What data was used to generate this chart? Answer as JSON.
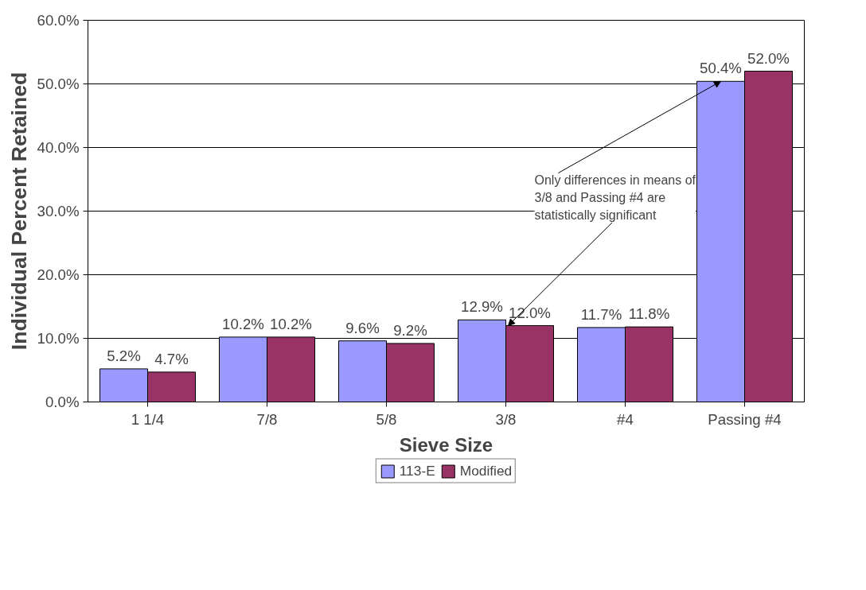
{
  "chart_data": {
    "type": "bar",
    "xlabel": "Sieve Size",
    "ylabel": "Individual Percent Retained",
    "categories": [
      "1 1/4",
      "7/8",
      "5/8",
      "3/8",
      "#4",
      "Passing #4"
    ],
    "series": [
      {
        "name": "113-E",
        "color": "#9999ff",
        "values": [
          5.2,
          10.2,
          9.6,
          12.9,
          11.7,
          50.4
        ],
        "value_labels": [
          "5.2%",
          "10.2%",
          "9.6%",
          "12.9%",
          "11.7%",
          "50.4%"
        ]
      },
      {
        "name": "Modified",
        "color": "#993366",
        "values": [
          4.7,
          10.2,
          9.2,
          12.0,
          11.8,
          52.0
        ],
        "value_labels": [
          "4.7%",
          "10.2%",
          "9.2%",
          "12.0%",
          "11.8%",
          "52.0%"
        ]
      }
    ],
    "ylim": [
      0,
      60
    ],
    "yticks": [
      {
        "value": 0,
        "label": "0.0%"
      },
      {
        "value": 10,
        "label": "10.0%"
      },
      {
        "value": 20,
        "label": "20.0%"
      },
      {
        "value": 30,
        "label": "30.0%"
      },
      {
        "value": 40,
        "label": "40.0%"
      },
      {
        "value": 50,
        "label": "50.0%"
      },
      {
        "value": 60,
        "label": "60.0%"
      }
    ],
    "annotations": [
      {
        "text": "Only differences in means of\n3/8 and Passing #4 are\nstatistically significant",
        "x": "3/8",
        "y": 12.0
      }
    ],
    "grid": "y",
    "legend": "bottom"
  }
}
